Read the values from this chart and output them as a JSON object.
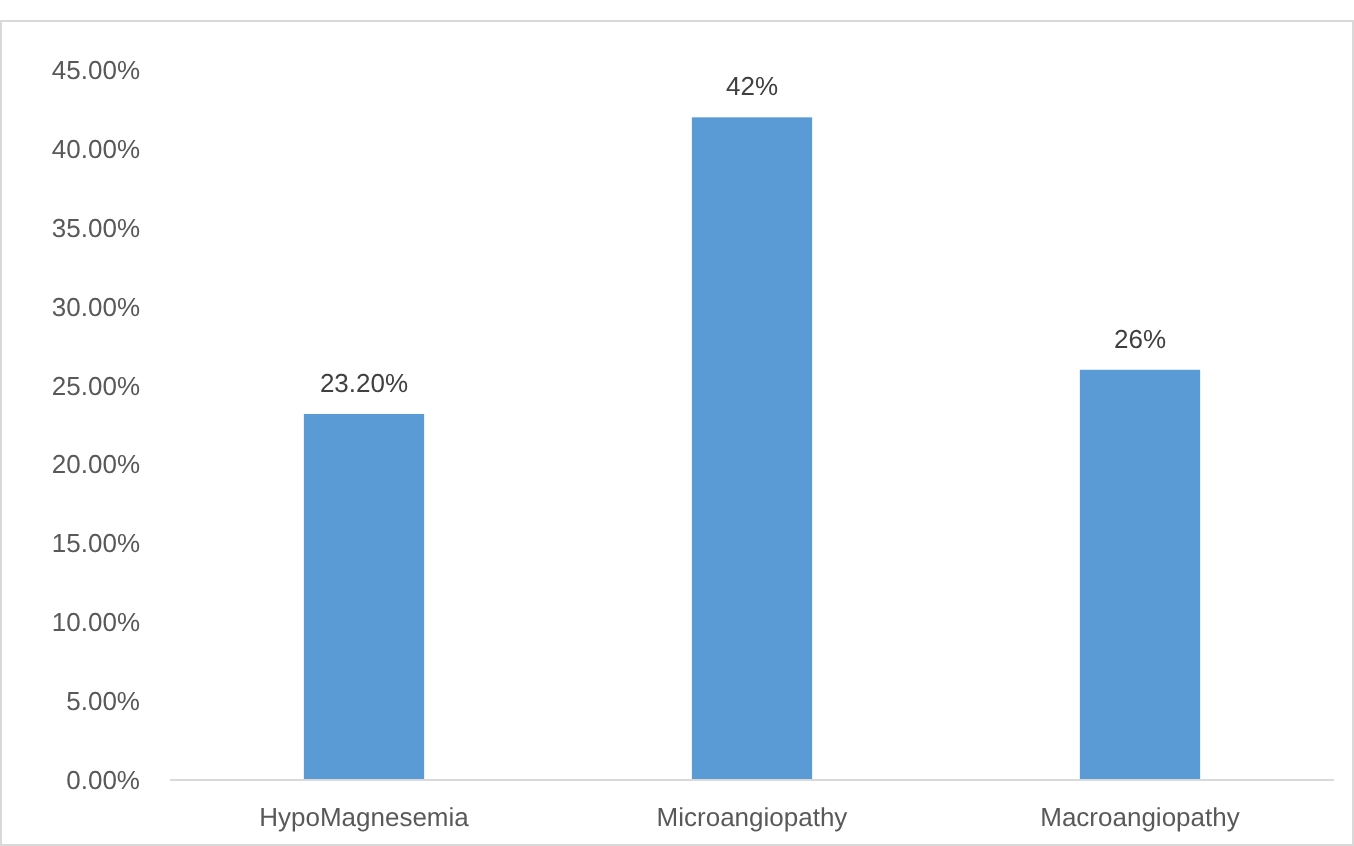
{
  "chart_data": {
    "type": "bar",
    "categories": [
      "HypoMagnesemia",
      "Microangiopathy",
      "Macroangiopathy"
    ],
    "values": [
      23.2,
      42,
      26
    ],
    "color": "#5b9bd5",
    "value_labels": [
      "23.20%",
      "42%",
      "26%"
    ],
    "ylim": [
      0,
      45
    ],
    "yticks": [
      {
        "value": 0,
        "label": "0.00%"
      },
      {
        "value": 5,
        "label": "5.00%"
      },
      {
        "value": 10,
        "label": "10.00%"
      },
      {
        "value": 15,
        "label": "15.00%"
      },
      {
        "value": 20,
        "label": "20.00%"
      },
      {
        "value": 25,
        "label": "25.00%"
      },
      {
        "value": 30,
        "label": "30.00%"
      },
      {
        "value": 35,
        "label": "35.00%"
      },
      {
        "value": 40,
        "label": "40.00%"
      },
      {
        "value": 45,
        "label": "45.00%"
      }
    ],
    "grid": false
  }
}
